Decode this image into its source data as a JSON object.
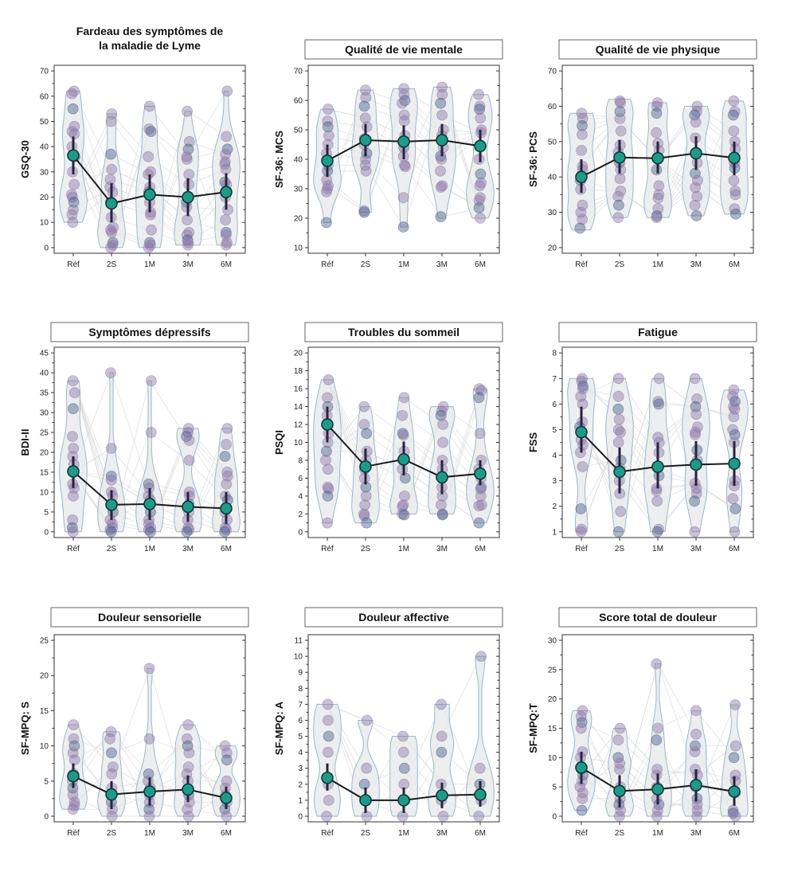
{
  "figure": {
    "layout": "3x3 grid of violin plots with individual points and mean ± CI",
    "colors": {
      "violin_fill": "#e6e8ea",
      "violin_stroke": "#9fb6c4",
      "point_fill": "#8c78a8",
      "point_dark": "#4a5f8c",
      "mean_fill": "#1f9a8a",
      "mean_stroke": "#0d3b36",
      "mean_line": "#1a1a1a",
      "subject_lines": "#d4d4d4",
      "frame": "#555555"
    }
  },
  "chart_data": [
    {
      "type": "violin",
      "title": "Fardeau des symptômes de la maladie de Lyme",
      "title_lines": [
        "Fardeau des symptômes de",
        "la maladie de Lyme"
      ],
      "title_boxed": false,
      "ylabel": "GSQ-30",
      "xlabel": "",
      "categories": [
        "Réf",
        "2S",
        "1M",
        "3M",
        "6M"
      ],
      "ylim": [
        0,
        70
      ],
      "yticks": [
        0,
        10,
        20,
        30,
        40,
        50,
        60,
        70
      ],
      "mean": [
        36.5,
        17.5,
        21,
        20,
        22
      ],
      "ci_low": [
        29,
        10,
        14,
        12.5,
        15
      ],
      "ci_high": [
        44,
        25.5,
        29,
        27.5,
        29.5
      ],
      "range": [
        [
          10,
          62
        ],
        [
          0,
          53
        ],
        [
          0,
          56
        ],
        [
          1,
          54
        ],
        [
          1,
          62
        ]
      ],
      "points": [
        [
          62,
          61,
          55,
          48,
          46,
          45,
          40,
          36,
          30,
          25,
          21,
          20,
          18,
          15,
          13,
          10
        ],
        [
          53,
          50,
          37,
          31,
          27,
          24,
          22,
          18,
          12,
          8,
          7,
          6,
          2,
          1,
          0
        ],
        [
          56,
          47,
          46,
          36,
          30,
          29,
          24,
          22,
          18,
          14,
          13,
          7,
          2,
          1,
          0
        ],
        [
          54,
          42,
          39,
          36,
          35,
          29,
          25,
          18,
          16,
          11,
          6,
          5,
          3,
          2,
          1
        ],
        [
          62,
          44,
          39,
          37,
          34,
          33,
          31,
          26,
          25,
          20,
          15,
          11,
          6,
          5,
          2,
          1
        ]
      ]
    },
    {
      "type": "violin",
      "title": "Qualité de vie mentale",
      "title_lines": [
        "Qualité de vie mentale"
      ],
      "title_boxed": true,
      "ylabel": "SF-36: MCS",
      "xlabel": "",
      "categories": [
        "Réf",
        "2S",
        "1M",
        "3M",
        "6M"
      ],
      "ylim": [
        10,
        70
      ],
      "yticks": [
        10,
        20,
        30,
        40,
        50,
        60,
        70
      ],
      "mean": [
        39.5,
        46.5,
        46,
        46.5,
        44.5
      ],
      "ci_low": [
        34,
        41,
        40,
        41,
        39
      ],
      "ci_high": [
        45,
        52,
        51.5,
        52,
        50
      ],
      "range": [
        [
          18.5,
          57
        ],
        [
          22,
          63.5
        ],
        [
          17,
          64
        ],
        [
          20,
          64.5
        ],
        [
          20,
          62
        ]
      ],
      "points": [
        [
          57,
          53,
          51,
          48,
          45,
          42,
          38,
          36,
          33,
          31,
          30,
          29,
          18.5
        ],
        [
          63.5,
          61,
          58,
          54,
          51,
          47,
          45,
          42,
          40,
          38,
          36,
          22.5,
          22
        ],
        [
          64,
          62,
          60,
          59,
          55,
          53,
          48,
          44,
          41,
          38,
          37.5,
          27,
          17
        ],
        [
          64.5,
          62,
          59,
          55,
          50,
          48,
          44,
          41,
          40,
          36,
          31,
          30.5,
          20.5
        ],
        [
          62,
          58,
          57,
          54,
          50,
          49,
          40,
          35,
          32,
          31,
          27,
          26,
          23.5,
          20
        ]
      ]
    },
    {
      "type": "violin",
      "title": "Qualité de vie physique",
      "title_lines": [
        "Qualité de vie physique"
      ],
      "title_boxed": true,
      "ylabel": "SF-36: PCS",
      "xlabel": "",
      "categories": [
        "Réf",
        "2S",
        "1M",
        "3M",
        "6M"
      ],
      "ylim": [
        20,
        70
      ],
      "yticks": [
        20,
        30,
        40,
        50,
        60,
        70
      ],
      "mean": [
        40,
        45.5,
        45.3,
        46.7,
        45.4
      ],
      "ci_low": [
        35.5,
        41,
        41,
        42,
        40.5
      ],
      "ci_high": [
        45,
        50.5,
        50,
        51.5,
        50
      ],
      "range": [
        [
          25,
          58
        ],
        [
          28.5,
          62
        ],
        [
          28.5,
          61
        ],
        [
          29,
          60
        ],
        [
          29.5,
          61.5
        ]
      ],
      "points": [
        [
          58,
          56.5,
          54.5,
          52,
          47.5,
          43,
          42,
          39,
          36.5,
          32,
          30,
          28,
          25.5
        ],
        [
          61.5,
          61,
          58.5,
          56.5,
          53,
          49,
          47,
          44,
          42,
          39.5,
          36,
          34.5,
          32,
          28.5
        ],
        [
          61,
          60,
          58,
          52.5,
          49.5,
          47.5,
          45,
          42,
          37.5,
          35,
          34,
          31,
          29,
          28.5
        ],
        [
          60,
          58.5,
          57.5,
          55.5,
          51,
          47,
          44,
          41,
          39,
          37,
          34.5,
          32,
          29
        ],
        [
          61.5,
          58.5,
          57.5,
          53,
          50,
          48,
          44,
          42.5,
          39,
          36,
          35,
          31,
          29.5
        ]
      ]
    },
    {
      "type": "violin",
      "title": "Symptômes dépressifs",
      "title_lines": [
        "Symptômes dépressifs"
      ],
      "title_boxed": true,
      "ylabel": "BDI-II",
      "xlabel": "",
      "categories": [
        "Réf",
        "2S",
        "1M",
        "3M",
        "6M"
      ],
      "ylim": [
        0,
        45
      ],
      "yticks": [
        0,
        5,
        10,
        15,
        20,
        25,
        30,
        35,
        40,
        45
      ],
      "mean": [
        15.2,
        6.8,
        7,
        6.3,
        5.9
      ],
      "ci_low": [
        11,
        3,
        3,
        2.5,
        2
      ],
      "ci_high": [
        19,
        10.5,
        11,
        10,
        10
      ],
      "range": [
        [
          0,
          38
        ],
        [
          0,
          40
        ],
        [
          0,
          38
        ],
        [
          0,
          26
        ],
        [
          0,
          26
        ]
      ],
      "points": [
        [
          38,
          35,
          31,
          24,
          21,
          19,
          17,
          15,
          12,
          11,
          9,
          3,
          1,
          0
        ],
        [
          40,
          21,
          14,
          13,
          10,
          9,
          7,
          5,
          3,
          2,
          1,
          0.5,
          0
        ],
        [
          38,
          25,
          12,
          11,
          9,
          8,
          7,
          5,
          3,
          2,
          1,
          0.5,
          0
        ],
        [
          26,
          25,
          24,
          23,
          18,
          10,
          9,
          7,
          5,
          3,
          1,
          0.5,
          0
        ],
        [
          26,
          22,
          19,
          15,
          14,
          12,
          9,
          8,
          5,
          3,
          1,
          0.5,
          0
        ]
      ]
    },
    {
      "type": "violin",
      "title": "Troubles du sommeil",
      "title_lines": [
        "Troubles du sommeil"
      ],
      "title_boxed": true,
      "ylabel": "PSQI",
      "xlabel": "",
      "categories": [
        "Réf",
        "2S",
        "1M",
        "3M",
        "6M"
      ],
      "ylim": [
        0,
        20
      ],
      "yticks": [
        0,
        2,
        4,
        6,
        8,
        10,
        12,
        14,
        16,
        18,
        20
      ],
      "mean": [
        12,
        7.3,
        8.1,
        6.1,
        6.5
      ],
      "ci_low": [
        10,
        5.3,
        6.3,
        4.2,
        5.2
      ],
      "ci_high": [
        14,
        9.3,
        10.1,
        8,
        8
      ],
      "range": [
        [
          1,
          17
        ],
        [
          1,
          14
        ],
        [
          2,
          15
        ],
        [
          2,
          14
        ],
        [
          1,
          16
        ]
      ],
      "points": [
        [
          17,
          15,
          14,
          13,
          12,
          11,
          10,
          9,
          8,
          7,
          5,
          4.8,
          4,
          1
        ],
        [
          14,
          12,
          11,
          9,
          8,
          7,
          6,
          5,
          4,
          3,
          2,
          1.8,
          1
        ],
        [
          15,
          13,
          11,
          10.8,
          9,
          8,
          7,
          6,
          4,
          3,
          2.8,
          2,
          1.9
        ],
        [
          14,
          13.5,
          13,
          12,
          10,
          8,
          7,
          6,
          5,
          4,
          3,
          2,
          1.9
        ],
        [
          16,
          15.8,
          15,
          11,
          8,
          7,
          6,
          5,
          4.8,
          4,
          3,
          2.9,
          1
        ]
      ]
    },
    {
      "type": "violin",
      "title": "Fatigue",
      "title_lines": [
        "Fatigue"
      ],
      "title_boxed": true,
      "ylabel": "FSS",
      "xlabel": "",
      "categories": [
        "Réf",
        "2S",
        "1M",
        "3M",
        "6M"
      ],
      "ylim": [
        1,
        8
      ],
      "yticks": [
        1,
        2,
        3,
        4,
        5,
        6,
        7,
        8
      ],
      "mean": [
        4.9,
        3.35,
        3.55,
        3.63,
        3.67
      ],
      "ci_low": [
        4.1,
        2.5,
        2.7,
        2.8,
        2.8
      ],
      "ci_high": [
        5.9,
        4.3,
        4.5,
        4.55,
        4.55
      ],
      "range": [
        [
          1,
          7
        ],
        [
          1,
          7
        ],
        [
          1,
          7
        ],
        [
          1,
          7
        ],
        [
          1,
          6.55
        ]
      ],
      "points": [
        [
          7,
          6.9,
          6.7,
          6.6,
          6.3,
          6,
          5.3,
          5.1,
          4.6,
          4.4,
          4.1,
          3.55,
          1.9,
          1.1,
          1
        ],
        [
          7,
          6.3,
          5.8,
          5.4,
          5,
          4.9,
          4.5,
          3.8,
          3.5,
          3,
          2.5,
          1.8,
          1
        ],
        [
          7,
          6.1,
          6,
          4.7,
          4.5,
          4.1,
          3.5,
          3.2,
          2.7,
          2.6,
          2.2,
          1.1,
          1
        ],
        [
          7,
          6.2,
          5.9,
          5.6,
          5.1,
          4.9,
          4.8,
          4.2,
          3.8,
          2.9,
          2.7,
          2.5,
          2.2,
          1
        ],
        [
          6.55,
          6.3,
          6.1,
          5.9,
          5.8,
          5.5,
          5,
          4.8,
          4.5,
          3,
          2.8,
          2.3,
          1.9,
          1
        ]
      ]
    },
    {
      "type": "violin",
      "title": "Douleur sensorielle",
      "title_lines": [
        "Douleur sensorielle"
      ],
      "title_boxed": true,
      "ylabel": "SF-MPQ: S",
      "xlabel": "",
      "categories": [
        "Réf",
        "2S",
        "1M",
        "3M",
        "6M"
      ],
      "ylim": [
        0,
        25
      ],
      "yticks": [
        0,
        5,
        10,
        15,
        20,
        25
      ],
      "mean": [
        5.7,
        3.1,
        3.5,
        3.8,
        2.6
      ],
      "ci_low": [
        4,
        1,
        1.5,
        2,
        1
      ],
      "ci_high": [
        7.5,
        5,
        5.5,
        5.8,
        4.2
      ],
      "range": [
        [
          1,
          13
        ],
        [
          0,
          12
        ],
        [
          0,
          21
        ],
        [
          0,
          13
        ],
        [
          0,
          10
        ]
      ],
      "points": [
        [
          13,
          11,
          10,
          9,
          8,
          6,
          5,
          4,
          3,
          2,
          1.5,
          1
        ],
        [
          12,
          11,
          9,
          7,
          6,
          4,
          3,
          2,
          1,
          0
        ],
        [
          21,
          11,
          6,
          5,
          4,
          3,
          2,
          1,
          0
        ],
        [
          13,
          11,
          10,
          9,
          7,
          6,
          5,
          3,
          2,
          1,
          0
        ],
        [
          10,
          9,
          8,
          5,
          4,
          3,
          2,
          1,
          0
        ]
      ]
    },
    {
      "type": "violin",
      "title": "Douleur affective",
      "title_lines": [
        "Douleur affective"
      ],
      "title_boxed": true,
      "ylabel": "SF-MPQ: A",
      "xlabel": "",
      "categories": [
        "Réf",
        "2S",
        "1M",
        "3M",
        "6M"
      ],
      "ylim": [
        0,
        11
      ],
      "yticks": [
        0,
        1,
        2,
        3,
        4,
        5,
        6,
        7,
        8,
        9,
        10,
        11
      ],
      "mean": [
        2.4,
        1,
        1,
        1.3,
        1.35
      ],
      "ci_low": [
        1.6,
        0.2,
        0.2,
        0.5,
        0.6
      ],
      "ci_high": [
        3.3,
        1.8,
        1.8,
        2.1,
        2.2
      ],
      "range": [
        [
          0,
          7
        ],
        [
          0,
          6
        ],
        [
          0,
          5
        ],
        [
          0,
          7
        ],
        [
          0,
          10
        ]
      ],
      "points": [
        [
          7,
          6,
          5,
          4,
          2,
          1,
          0
        ],
        [
          6,
          3,
          2,
          1,
          0
        ],
        [
          5,
          4,
          3,
          2,
          1,
          0
        ],
        [
          7,
          5,
          4,
          2,
          1,
          0
        ],
        [
          10,
          3,
          2,
          1,
          0
        ]
      ]
    },
    {
      "type": "violin",
      "title": "Score total de douleur",
      "title_lines": [
        "Score total de douleur"
      ],
      "title_boxed": true,
      "ylabel": "SF-MPQ:T",
      "xlabel": "",
      "categories": [
        "Réf",
        "2S",
        "1M",
        "3M",
        "6M"
      ],
      "ylim": [
        0,
        30
      ],
      "yticks": [
        0,
        5,
        10,
        15,
        20,
        25,
        30
      ],
      "mean": [
        8.3,
        4.3,
        4.6,
        5.3,
        4.2
      ],
      "ci_low": [
        5.5,
        1.5,
        2,
        2.5,
        1.8
      ],
      "ci_high": [
        11,
        7,
        7.3,
        8,
        6.8
      ],
      "range": [
        [
          1,
          18
        ],
        [
          0,
          15
        ],
        [
          0,
          26
        ],
        [
          0,
          18
        ],
        [
          0,
          19
        ]
      ],
      "points": [
        [
          18,
          17,
          16,
          15,
          11,
          10,
          8,
          7,
          6,
          5,
          4,
          3,
          1
        ],
        [
          15,
          13,
          10,
          9,
          8,
          5,
          3,
          2,
          1,
          0
        ],
        [
          26,
          15,
          13,
          8,
          7,
          5,
          3,
          2,
          1,
          0
        ],
        [
          18,
          14,
          12,
          11,
          8,
          7,
          5,
          3,
          2,
          1,
          0
        ],
        [
          19,
          12,
          10,
          7,
          6,
          4,
          1,
          0.5,
          0
        ]
      ]
    }
  ]
}
